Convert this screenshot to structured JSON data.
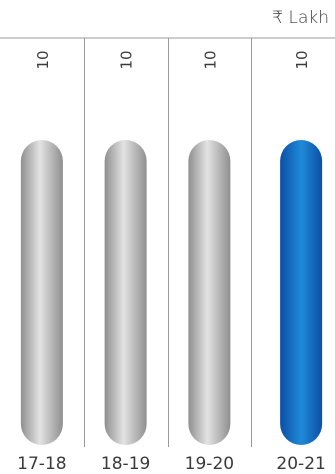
{
  "chart_data": {
    "type": "bar",
    "unit_label": "₹ Lakh",
    "categories": [
      "17-18",
      "18-19",
      "19-20",
      "20-21"
    ],
    "values": [
      10,
      10,
      10,
      10
    ],
    "highlight_index": 3,
    "colors": {
      "default_bar_light": "#e3e3e3",
      "default_bar_dark": "#8f8f8f",
      "highlight_bar_light": "#1f8ad8",
      "highlight_bar_dark": "#0b4fa6",
      "divider": "#9a9a9a",
      "text": "#3a3a3a"
    }
  }
}
